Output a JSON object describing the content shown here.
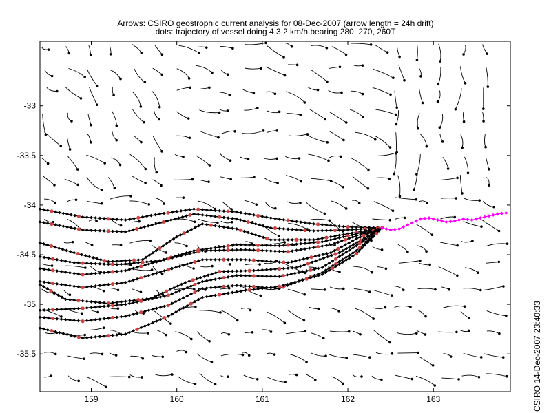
{
  "chart_data": {
    "type": "scatter",
    "title": "Arrows: CSIRO geostrophic current analysis for 08-Dec-2007 (arrow length = 24h drift)",
    "subtitle": "dots: trajectory of vessel doing 4,3,2 km/h bearing 280, 270, 260T",
    "side_stamp": "CSIRO 14-Dec-2007 23:40:33",
    "xlim": [
      158.4,
      163.9
    ],
    "ylim": [
      -35.88,
      -32.35
    ],
    "x_ticks": [
      159,
      160,
      161,
      162,
      163
    ],
    "y_ticks": [
      -33,
      -33.5,
      -34,
      -34.5,
      -35,
      -35.5
    ],
    "x_tick_labels": [
      "159",
      "160",
      "161",
      "162",
      "163"
    ],
    "y_tick_labels": [
      "-33",
      "-33.5",
      "-34",
      "-34.5",
      "-35",
      "-35.5"
    ],
    "grid": false,
    "colors": {
      "trajectory": "#000000",
      "marker": "#cc4444",
      "track": "#ff00ff",
      "arrow": "#000000"
    },
    "origin": [
      162.4,
      -34.23
    ],
    "ship_track": [
      [
        162.4,
        -34.23
      ],
      [
        162.5,
        -34.25
      ],
      [
        162.6,
        -34.24
      ],
      [
        162.65,
        -34.22
      ],
      [
        162.75,
        -34.18
      ],
      [
        162.85,
        -34.14
      ],
      [
        162.95,
        -34.13
      ],
      [
        163.05,
        -34.15
      ],
      [
        163.15,
        -34.17
      ],
      [
        163.25,
        -34.16
      ],
      [
        163.35,
        -34.14
      ],
      [
        163.45,
        -34.15
      ],
      [
        163.55,
        -34.13
      ],
      [
        163.65,
        -34.11
      ],
      [
        163.75,
        -34.09
      ],
      [
        163.85,
        -34.08
      ]
    ],
    "trajectories": [
      [
        [
          158.4,
          -34.04
        ],
        [
          158.9,
          -34.12
        ],
        [
          159.4,
          -34.15
        ],
        [
          159.8,
          -34.09
        ],
        [
          160.2,
          -34.04
        ],
        [
          160.7,
          -34.07
        ],
        [
          161.1,
          -34.13
        ],
        [
          161.6,
          -34.19
        ],
        [
          162.0,
          -34.22
        ],
        [
          162.4,
          -34.23
        ]
      ],
      [
        [
          158.4,
          -34.17
        ],
        [
          158.9,
          -34.25
        ],
        [
          159.4,
          -34.27
        ],
        [
          159.8,
          -34.18
        ],
        [
          160.2,
          -34.09
        ],
        [
          160.7,
          -34.14
        ],
        [
          161.1,
          -34.23
        ],
        [
          161.6,
          -34.26
        ],
        [
          162.0,
          -34.25
        ],
        [
          162.4,
          -34.23
        ]
      ],
      [
        [
          158.4,
          -34.38
        ],
        [
          158.8,
          -34.48
        ],
        [
          159.2,
          -34.57
        ],
        [
          159.6,
          -34.55
        ],
        [
          160.0,
          -34.32
        ],
        [
          160.3,
          -34.19
        ],
        [
          160.7,
          -34.24
        ],
        [
          161.1,
          -34.35
        ],
        [
          161.6,
          -34.35
        ],
        [
          162.0,
          -34.29
        ],
        [
          162.4,
          -34.23
        ]
      ],
      [
        [
          158.4,
          -34.52
        ],
        [
          158.8,
          -34.58
        ],
        [
          159.3,
          -34.6
        ],
        [
          159.8,
          -34.56
        ],
        [
          160.2,
          -34.46
        ],
        [
          160.7,
          -34.4
        ],
        [
          161.2,
          -34.41
        ],
        [
          161.7,
          -34.37
        ],
        [
          162.1,
          -34.29
        ],
        [
          162.4,
          -34.23
        ]
      ],
      [
        [
          158.4,
          -34.64
        ],
        [
          158.9,
          -34.7
        ],
        [
          159.4,
          -34.66
        ],
        [
          159.9,
          -34.54
        ],
        [
          160.3,
          -34.46
        ],
        [
          160.8,
          -34.45
        ],
        [
          161.3,
          -34.47
        ],
        [
          161.8,
          -34.4
        ],
        [
          162.1,
          -34.31
        ],
        [
          162.4,
          -34.23
        ]
      ],
      [
        [
          158.4,
          -34.77
        ],
        [
          158.9,
          -34.83
        ],
        [
          159.4,
          -34.78
        ],
        [
          159.9,
          -34.65
        ],
        [
          160.3,
          -34.55
        ],
        [
          160.8,
          -34.55
        ],
        [
          161.3,
          -34.58
        ],
        [
          161.8,
          -34.48
        ],
        [
          162.1,
          -34.34
        ],
        [
          162.4,
          -34.23
        ]
      ],
      [
        [
          158.4,
          -34.8
        ],
        [
          158.7,
          -34.95
        ],
        [
          159.2,
          -34.99
        ],
        [
          159.7,
          -34.94
        ],
        [
          160.1,
          -34.78
        ],
        [
          160.5,
          -34.67
        ],
        [
          160.9,
          -34.66
        ],
        [
          161.4,
          -34.63
        ],
        [
          161.9,
          -34.48
        ],
        [
          162.4,
          -34.23
        ]
      ],
      [
        [
          158.4,
          -35.06
        ],
        [
          158.9,
          -35.04
        ],
        [
          159.4,
          -35.0
        ],
        [
          159.9,
          -34.91
        ],
        [
          160.3,
          -34.77
        ],
        [
          160.7,
          -34.71
        ],
        [
          161.2,
          -34.72
        ],
        [
          161.7,
          -34.63
        ],
        [
          162.1,
          -34.41
        ],
        [
          162.4,
          -34.23
        ]
      ],
      [
        [
          158.4,
          -35.13
        ],
        [
          158.9,
          -35.17
        ],
        [
          159.4,
          -35.12
        ],
        [
          159.9,
          -35.01
        ],
        [
          160.3,
          -34.84
        ],
        [
          160.7,
          -34.81
        ],
        [
          161.2,
          -34.84
        ],
        [
          161.7,
          -34.68
        ],
        [
          162.1,
          -34.46
        ],
        [
          162.4,
          -34.23
        ]
      ],
      [
        [
          158.4,
          -35.24
        ],
        [
          158.9,
          -35.34
        ],
        [
          159.4,
          -35.3
        ],
        [
          159.9,
          -35.12
        ],
        [
          160.3,
          -34.93
        ],
        [
          160.8,
          -34.86
        ],
        [
          161.2,
          -34.82
        ],
        [
          161.7,
          -34.7
        ],
        [
          162.1,
          -34.49
        ],
        [
          162.4,
          -34.23
        ]
      ]
    ]
  }
}
